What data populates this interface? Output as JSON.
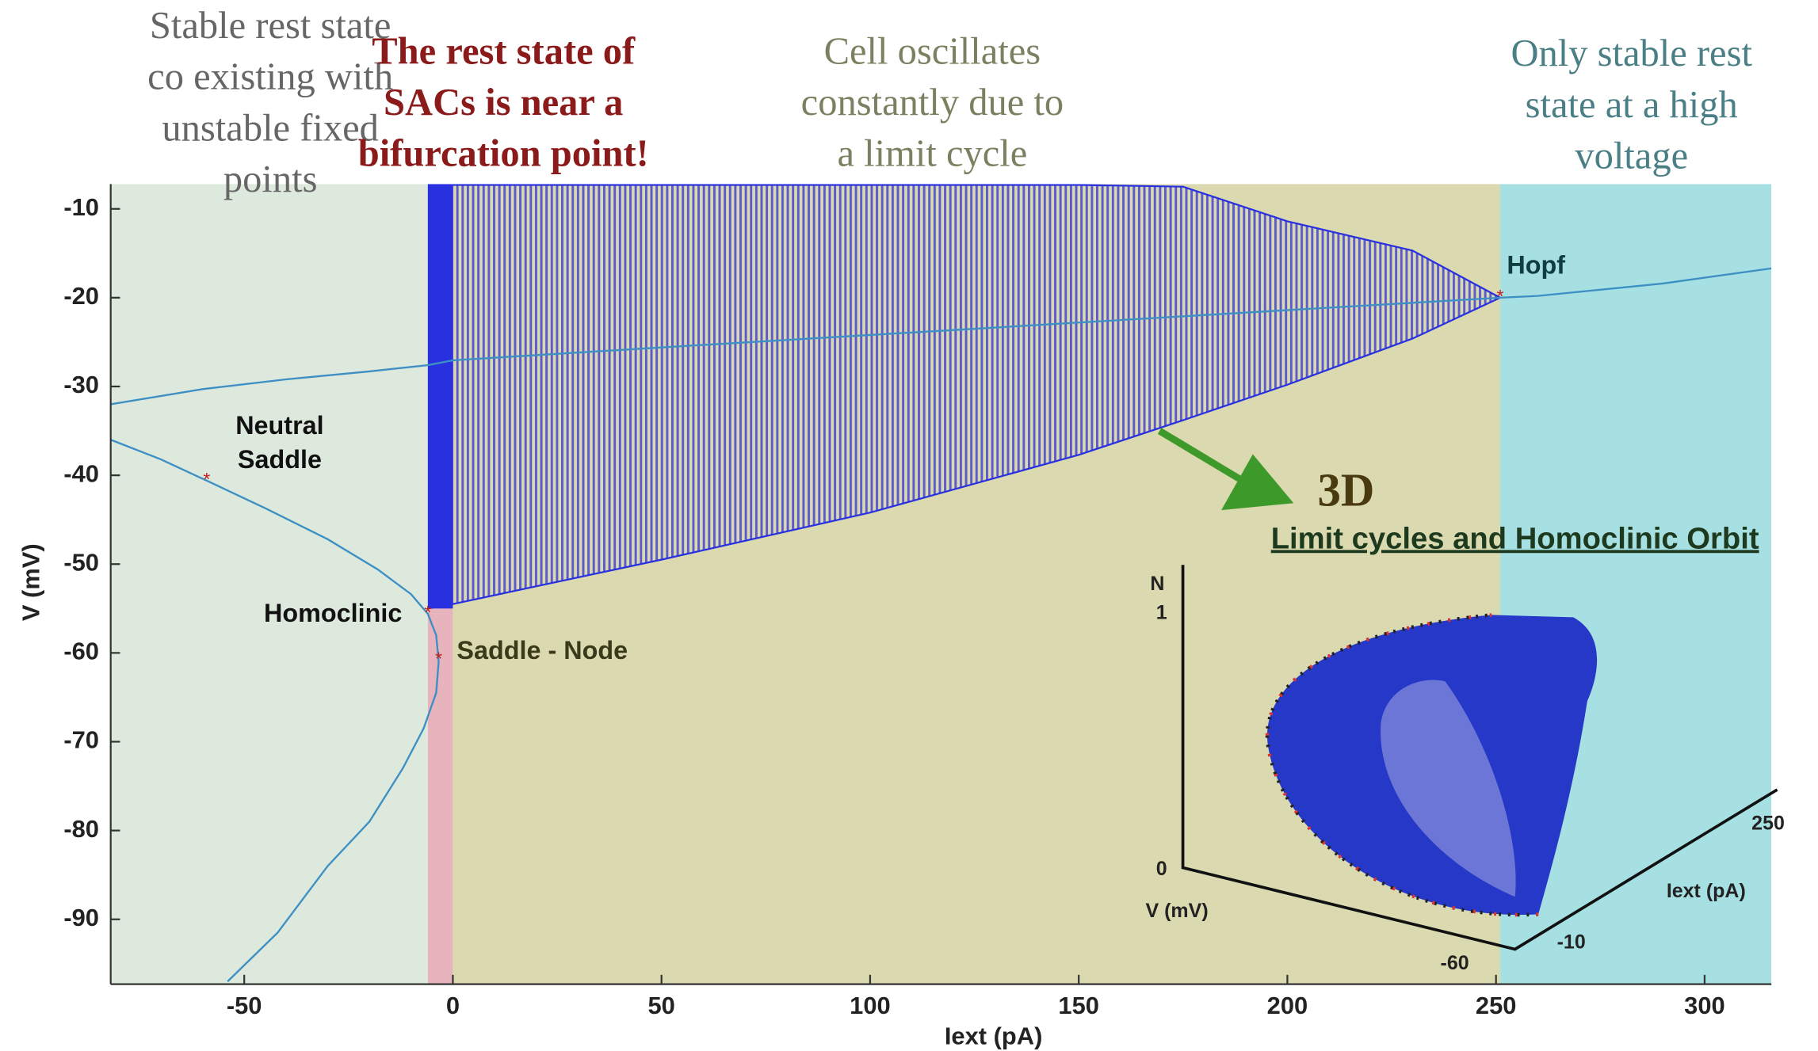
{
  "chart_data": {
    "type": "line",
    "xlabel": "Iext (pA)",
    "ylabel": "V (mV)",
    "xlim": [
      -82,
      316
    ],
    "ylim": [
      -97.3,
      -7.2
    ],
    "xticks": [
      -50,
      0,
      50,
      100,
      150,
      200,
      250,
      300
    ],
    "yticks": [
      -10,
      -20,
      -30,
      -40,
      -50,
      -60,
      -70,
      -80,
      -90
    ],
    "regions": [
      {
        "from": -82,
        "to": -6,
        "color": "#dde9dc"
      },
      {
        "from": -6,
        "to": 0,
        "color": "#e7b3bd"
      },
      {
        "from": 0,
        "to": 251,
        "color": "#dad9b0"
      },
      {
        "from": 251,
        "to": 316,
        "color": "#a6e0e2"
      }
    ],
    "region_labels": [
      [
        "Stable rest state",
        "co existing with",
        "unstable fixed",
        "points"
      ],
      [
        "The rest state of",
        "SACs is near a",
        "bifurcation point!"
      ],
      [
        "Cell oscillates",
        "constantly due to",
        "a limit cycle"
      ],
      [
        "Only stable rest",
        "state at a high",
        "voltage"
      ]
    ],
    "series": [
      {
        "color": "#3d8fc4",
        "x": [
          -82,
          -60,
          -40,
          -20,
          -6,
          0,
          50,
          100,
          150,
          200,
          251,
          260,
          290,
          316
        ],
        "values": [
          -32,
          -30.3,
          -29.2,
          -28.3,
          -27.6,
          -27.05,
          -25.6,
          -24.2,
          -22.8,
          -21.4,
          -20,
          -19.8,
          -18.4,
          -16.7
        ]
      },
      {
        "color": "#3d8fc4",
        "x": [
          -82,
          -70,
          -59,
          -45,
          -30,
          -18,
          -10,
          -6,
          -4,
          -3.4,
          -4,
          -7,
          -12,
          -20,
          -30,
          -42,
          -54
        ],
        "values": [
          -36,
          -38.2,
          -40.6,
          -43.7,
          -47.2,
          -50.6,
          -53.4,
          -55.6,
          -58,
          -61,
          -64.5,
          -68.5,
          -73,
          -79,
          -84,
          -91.5,
          -97
        ]
      }
    ],
    "limit_cycle": {
      "color": "#2830e0",
      "x": [
        -6,
        0,
        50,
        100,
        150,
        175,
        200,
        230,
        251
      ],
      "max": [
        -7.3,
        -7.3,
        -7.3,
        -7.3,
        -7.3,
        -7.5,
        -11.4,
        -14.7,
        -20
      ],
      "min": [
        -55,
        -54.5,
        -49.5,
        -44.2,
        -37.7,
        -33.8,
        -29.8,
        -24.6,
        -20
      ]
    },
    "points": [
      {
        "label": [
          "Neutral",
          "Saddle"
        ],
        "x": -59,
        "y": -40.6
      },
      {
        "label": [
          "Homoclinic"
        ],
        "x": -6,
        "y": -55.6
      },
      {
        "label": [
          "Saddle - Node"
        ],
        "x": -3.4,
        "y": -60.8
      },
      {
        "label": [
          "Hopf"
        ],
        "x": 251,
        "y": -20
      }
    ],
    "inset": {
      "title": "3D",
      "subtitle": "Limit cycles and Homoclinic Orbit",
      "zlabel": "N",
      "zticks": [
        "1",
        "0"
      ],
      "vlabel": "V (mV)",
      "vticks": [
        "-60",
        "-10"
      ],
      "ilabel": "Iext (pA)",
      "iticks": [
        "250"
      ]
    }
  }
}
